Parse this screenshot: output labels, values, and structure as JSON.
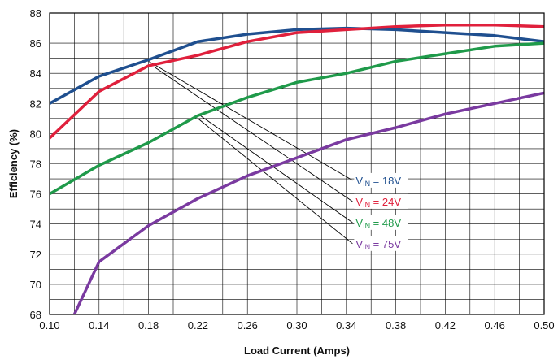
{
  "chart_data": {
    "type": "line",
    "xlabel": "Load Current (Amps)",
    "ylabel": "Efficiency (%)",
    "xlim": [
      0.1,
      0.5
    ],
    "ylim": [
      68,
      88
    ],
    "x_ticks": [
      "0.10",
      "0.14",
      "0.18",
      "0.22",
      "0.26",
      "0.30",
      "0.34",
      "0.38",
      "0.42",
      "0.46",
      "0.50"
    ],
    "y_ticks": [
      "68",
      "70",
      "72",
      "74",
      "76",
      "78",
      "80",
      "82",
      "84",
      "86",
      "88"
    ],
    "grid": true,
    "series": [
      {
        "name": "VIN = 18V",
        "label_main": "V",
        "label_sub": "IN",
        "label_rest": " = 18V",
        "color": "#1f4f8f",
        "x": [
          0.1,
          0.14,
          0.18,
          0.22,
          0.26,
          0.3,
          0.34,
          0.38,
          0.42,
          0.46,
          0.5
        ],
        "y": [
          82.0,
          83.8,
          84.9,
          86.1,
          86.6,
          86.9,
          87.0,
          86.9,
          86.7,
          86.5,
          86.1
        ]
      },
      {
        "name": "VIN = 24V",
        "label_main": "V",
        "label_sub": "IN",
        "label_rest": " = 24V",
        "color": "#e0203c",
        "x": [
          0.1,
          0.14,
          0.18,
          0.22,
          0.26,
          0.3,
          0.34,
          0.38,
          0.42,
          0.46,
          0.5
        ],
        "y": [
          79.7,
          82.8,
          84.5,
          85.2,
          86.1,
          86.7,
          86.9,
          87.1,
          87.2,
          87.2,
          87.1
        ]
      },
      {
        "name": "VIN = 48V",
        "label_main": "V",
        "label_sub": "IN",
        "label_rest": " = 48V",
        "color": "#1f9a4a",
        "x": [
          0.1,
          0.14,
          0.18,
          0.22,
          0.26,
          0.3,
          0.34,
          0.38,
          0.42,
          0.46,
          0.5
        ],
        "y": [
          76.0,
          77.9,
          79.4,
          81.2,
          82.4,
          83.4,
          84.0,
          84.8,
          85.3,
          85.8,
          86.0
        ]
      },
      {
        "name": "VIN = 75V",
        "label_main": "V",
        "label_sub": "IN",
        "label_rest": " = 75V",
        "color": "#7a3aa0",
        "x": [
          0.12,
          0.14,
          0.18,
          0.22,
          0.26,
          0.3,
          0.34,
          0.38,
          0.42,
          0.46,
          0.5
        ],
        "y": [
          68.0,
          71.5,
          73.9,
          75.7,
          77.2,
          78.4,
          79.6,
          80.4,
          81.3,
          82.0,
          82.7
        ]
      }
    ],
    "annotations": [
      {
        "series": 0,
        "from_x": 0.18,
        "from_y": 84.8,
        "label_x": 0.345,
        "label_y": 76.9
      },
      {
        "series": 1,
        "from_x": 0.185,
        "from_y": 84.4,
        "label_x": 0.345,
        "label_y": 75.5
      },
      {
        "series": 2,
        "from_x": 0.22,
        "from_y": 81.3,
        "label_x": 0.345,
        "label_y": 74.1
      },
      {
        "series": 3,
        "from_x": 0.22,
        "from_y": 81.0,
        "label_x": 0.345,
        "label_y": 72.7
      }
    ]
  }
}
